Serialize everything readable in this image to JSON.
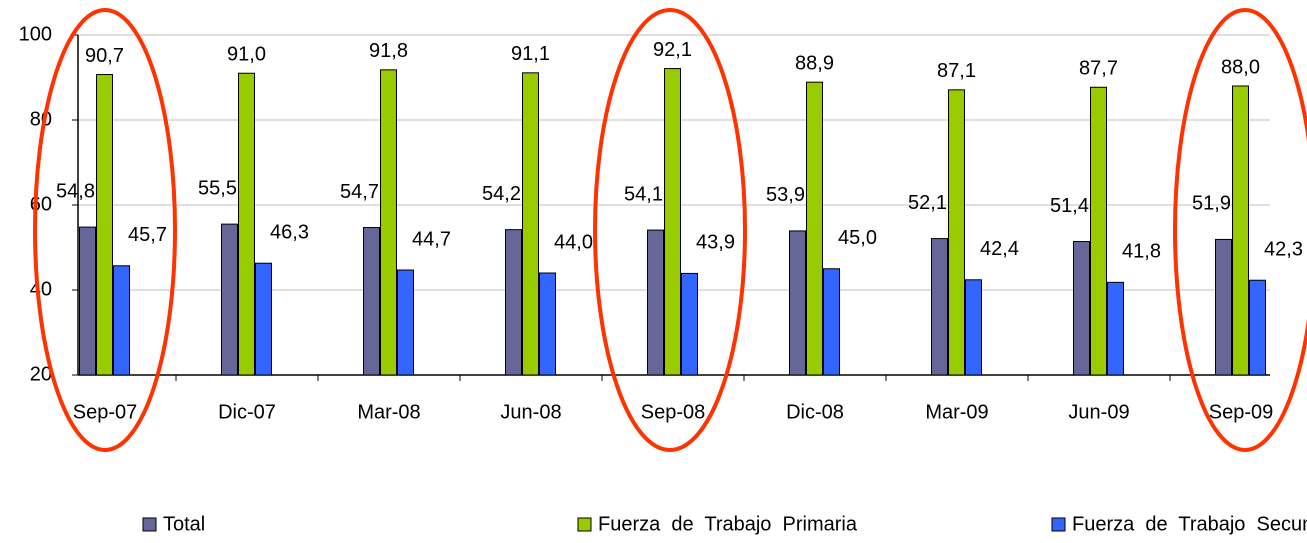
{
  "chart_data": {
    "type": "bar",
    "categories": [
      "Sep-07",
      "Dic-07",
      "Mar-08",
      "Jun-08",
      "Sep-08",
      "Dic-08",
      "Mar-09",
      "Jun-09",
      "Sep-09"
    ],
    "series": [
      {
        "name": "Total",
        "color": "#666699",
        "values": [
          54.8,
          55.5,
          54.7,
          54.2,
          54.1,
          53.9,
          52.1,
          51.4,
          51.9
        ],
        "value_labels": [
          "54,8",
          "55,5",
          "54,7",
          "54,2",
          "54,1",
          "53,9",
          "52,1",
          "51,4",
          "51,9"
        ]
      },
      {
        "name": "Fuerza  de  Trabajo  Primaria",
        "color": "#99cc00",
        "values": [
          90.7,
          91.0,
          91.8,
          91.1,
          92.1,
          88.9,
          87.1,
          87.7,
          88.0
        ],
        "value_labels": [
          "90,7",
          "91,0",
          "91,8",
          "91,1",
          "92,1",
          "88,9",
          "87,1",
          "87,7",
          "88,0"
        ]
      },
      {
        "name": "Fuerza  de  Trabajo  Secundaria",
        "color": "#3366ff",
        "values": [
          45.7,
          46.3,
          44.7,
          44.0,
          43.9,
          45.0,
          42.4,
          41.8,
          42.3
        ],
        "value_labels": [
          "45,7",
          "46,3",
          "44,7",
          "44,0",
          "43,9",
          "45,0",
          "42,4",
          "41,8",
          "42,3"
        ]
      }
    ],
    "ylim": [
      20,
      100
    ],
    "yticks": [
      20,
      40,
      60,
      80,
      100
    ],
    "grid": true,
    "legend": "bottom"
  }
}
